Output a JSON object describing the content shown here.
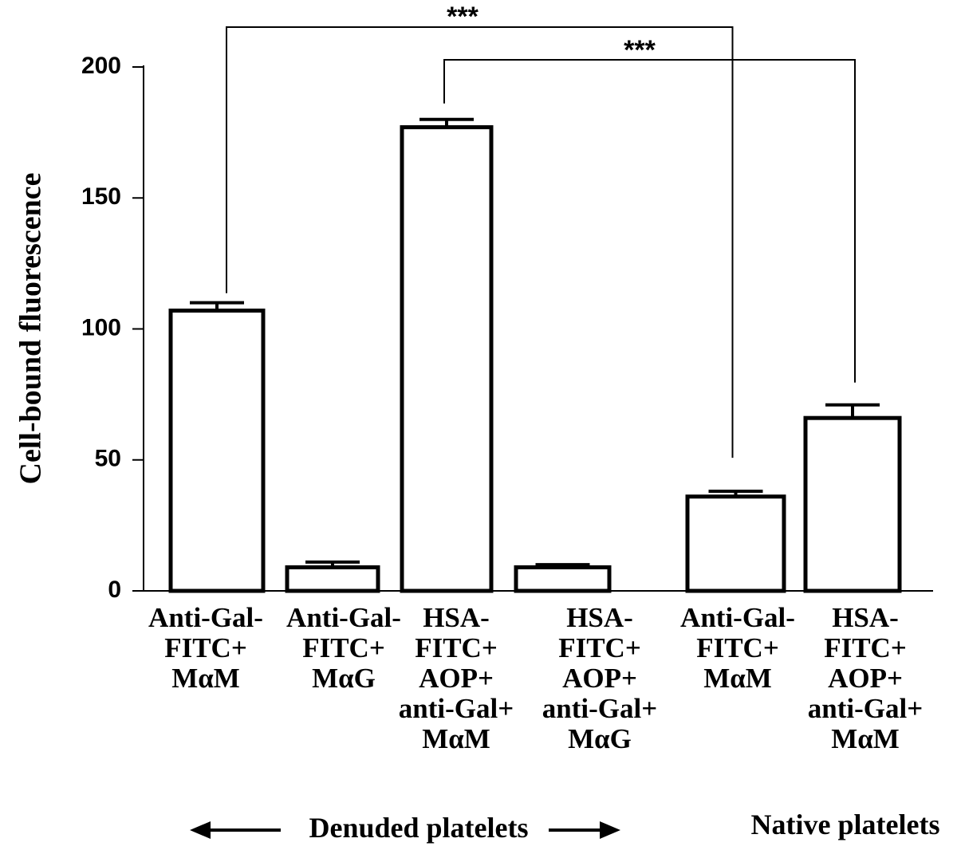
{
  "chart_data": {
    "type": "bar",
    "title": "",
    "xlabel": "",
    "ylabel": "Cell-bound fluorescence",
    "ylim": [
      0,
      200
    ],
    "yticks": [
      0,
      50,
      100,
      150,
      200
    ],
    "grid": false,
    "categories": [
      [
        "Anti-Gal-",
        "FITC+",
        "MαM"
      ],
      [
        "Anti-Gal-",
        "FITC+",
        "MαG"
      ],
      [
        "HSA-",
        "FITC+",
        "AOP+",
        "anti-Gal+",
        "MαM"
      ],
      [
        "HSA-",
        "FITC+",
        "AOP+",
        "anti-Gal+",
        "MαG"
      ],
      [
        "Anti-Gal-",
        "FITC+",
        "MαM"
      ],
      [
        "HSA-",
        "FITC+",
        "AOP+",
        "anti-Gal+",
        "MαM"
      ]
    ],
    "values": [
      107,
      9,
      177,
      9,
      36,
      66
    ],
    "errors": [
      3,
      2,
      3,
      1,
      2,
      5
    ],
    "significance": [
      {
        "from": 0,
        "to": 4,
        "label": "***"
      },
      {
        "from": 2,
        "to": 5,
        "label": "***"
      }
    ],
    "groups": [
      {
        "label": "Denuded platelets",
        "from": 0,
        "to": 3
      },
      {
        "label": "Native platelets",
        "from": 4,
        "to": 5
      }
    ]
  }
}
